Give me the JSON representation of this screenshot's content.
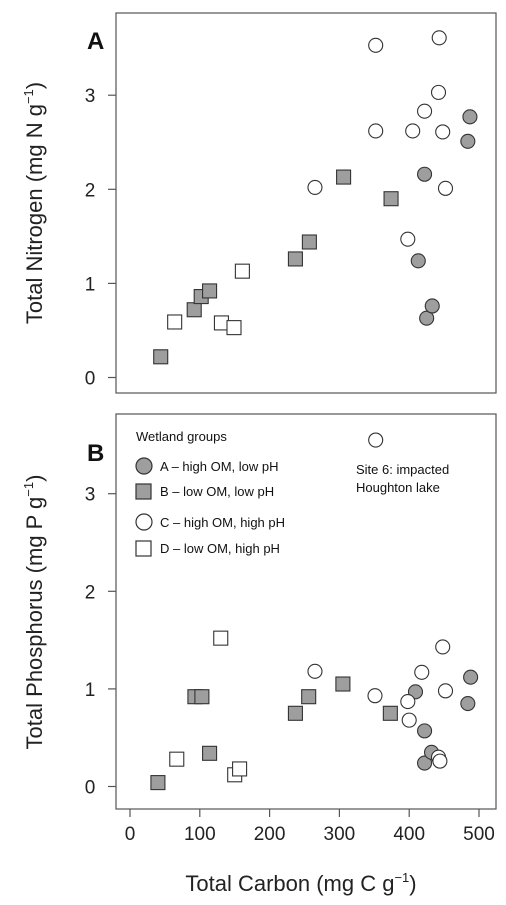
{
  "chart_data": [
    {
      "type": "scatter",
      "panel": "A",
      "xlim": [
        0,
        500
      ],
      "ylim": [
        0,
        3.85
      ],
      "yticks": [
        0,
        1,
        2,
        3
      ],
      "ylabel_main": "Total Nitrogen (mg N g",
      "ylabel_sup": "−1",
      "ylabel_end": ")",
      "series": [
        {
          "group": "A",
          "marker": "circle",
          "fill": "#9e9e9e",
          "points": [
            [
              422,
              2.16
            ],
            [
              413,
              1.24
            ],
            [
              425,
              0.63
            ],
            [
              433,
              0.76
            ],
            [
              487,
              2.77
            ],
            [
              484,
              2.51
            ]
          ]
        },
        {
          "group": "B",
          "marker": "square",
          "fill": "#9e9e9e",
          "points": [
            [
              44,
              0.22
            ],
            [
              92,
              0.72
            ],
            [
              102,
              0.86
            ],
            [
              114,
              0.92
            ],
            [
              237,
              1.26
            ],
            [
              257,
              1.44
            ],
            [
              306,
              2.13
            ],
            [
              374,
              1.9
            ]
          ]
        },
        {
          "group": "C",
          "marker": "circle",
          "fill": "#ffffff",
          "points": [
            [
              352,
              3.53
            ],
            [
              443,
              3.61
            ],
            [
              442,
              3.03
            ],
            [
              422,
              2.83
            ],
            [
              352,
              2.62
            ],
            [
              405,
              2.62
            ],
            [
              448,
              2.61
            ],
            [
              265,
              2.02
            ],
            [
              452,
              2.01
            ],
            [
              398,
              1.47
            ]
          ]
        },
        {
          "group": "D",
          "marker": "square",
          "fill": "#ffffff",
          "points": [
            [
              64,
              0.59
            ],
            [
              131,
              0.58
            ],
            [
              149,
              0.53
            ],
            [
              161,
              1.13
            ]
          ]
        }
      ]
    },
    {
      "type": "scatter",
      "panel": "B",
      "xlim": [
        0,
        500
      ],
      "ylim": [
        0,
        3.85
      ],
      "xticks": [
        0,
        100,
        200,
        300,
        400,
        500
      ],
      "yticks": [
        0,
        1,
        2,
        3
      ],
      "xlabel_main": "Total Carbon (mg C g",
      "xlabel_sup": "−1",
      "xlabel_end": ")",
      "ylabel_main": "Total Phosphorus (mg P g",
      "ylabel_sup": "−1",
      "ylabel_end": ")",
      "legend": {
        "title": "Wetland groups",
        "placement": "top-left",
        "entries": [
          {
            "label": "A –  high OM, low pH",
            "marker": "circle",
            "fill": "#9e9e9e"
          },
          {
            "label": "B – low OM, low pH",
            "marker": "square",
            "fill": "#9e9e9e"
          },
          {
            "label": "C – high OM, high pH",
            "marker": "circle",
            "fill": "#ffffff"
          },
          {
            "label": "D – low OM, high pH",
            "marker": "square",
            "fill": "#ffffff"
          }
        ]
      },
      "annotation": {
        "line1": "Site 6: impacted",
        "line2": "Houghton lake"
      },
      "series": [
        {
          "group": "A",
          "marker": "circle",
          "fill": "#9e9e9e",
          "points": [
            [
              409,
              0.97
            ],
            [
              422,
              0.57
            ],
            [
              422,
              0.24
            ],
            [
              432,
              0.35
            ],
            [
              488,
              1.12
            ],
            [
              484,
              0.85
            ]
          ]
        },
        {
          "group": "B",
          "marker": "square",
          "fill": "#9e9e9e",
          "points": [
            [
              40,
              0.04
            ],
            [
              93,
              0.92
            ],
            [
              103,
              0.92
            ],
            [
              114,
              0.34
            ],
            [
              237,
              0.75
            ],
            [
              256,
              0.92
            ],
            [
              305,
              1.05
            ],
            [
              373,
              0.75
            ]
          ]
        },
        {
          "group": "C",
          "marker": "circle",
          "fill": "#ffffff",
          "points": [
            [
              352,
              3.55
            ],
            [
              265,
              1.18
            ],
            [
              351,
              0.93
            ],
            [
              398,
              0.87
            ],
            [
              418,
              1.17
            ],
            [
              400,
              0.68
            ],
            [
              448,
              1.43
            ],
            [
              452,
              0.98
            ],
            [
              442,
              0.3
            ],
            [
              444,
              0.26
            ]
          ]
        },
        {
          "group": "D",
          "marker": "square",
          "fill": "#ffffff",
          "points": [
            [
              67,
              0.28
            ],
            [
              130,
              1.52
            ],
            [
              150,
              0.12
            ],
            [
              157,
              0.18
            ]
          ]
        }
      ]
    }
  ]
}
